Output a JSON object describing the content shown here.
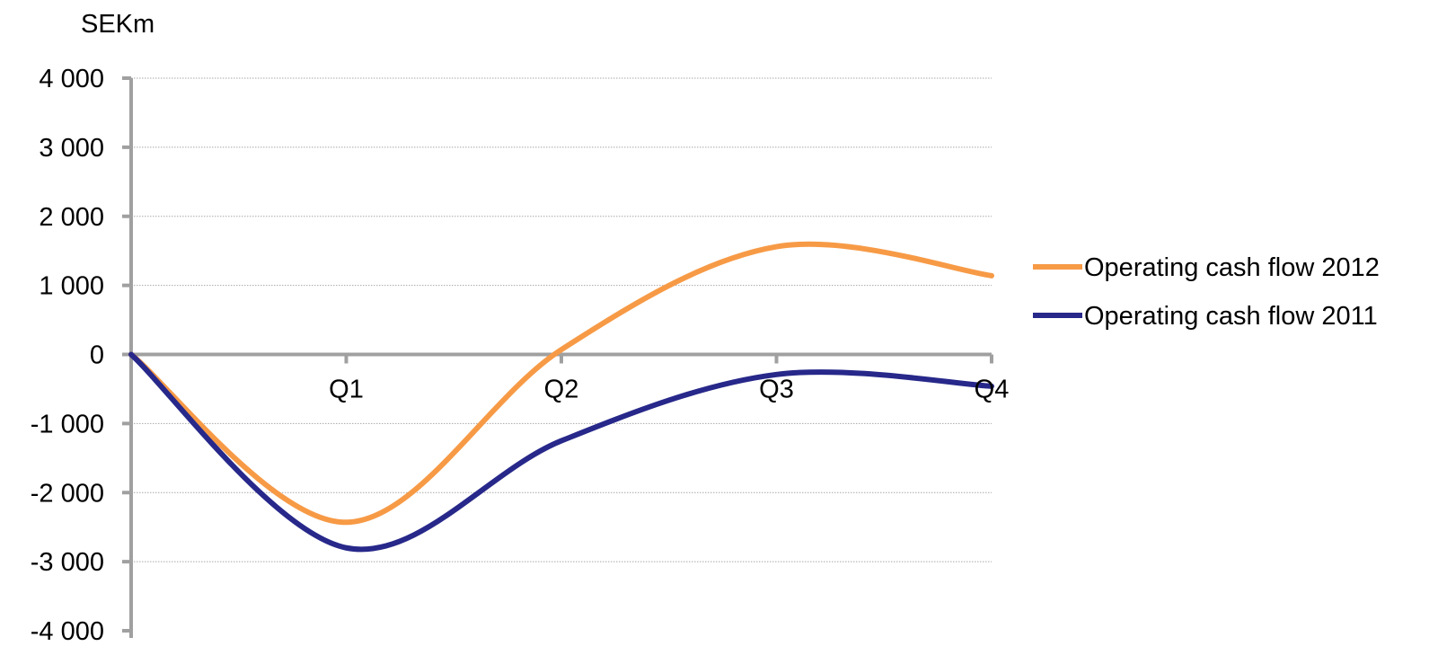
{
  "chart_data": {
    "type": "line",
    "title": "",
    "ylabel": "SEKm",
    "xlabel": "",
    "categories": [
      "",
      "Q1",
      "Q2",
      "Q3",
      "Q4"
    ],
    "x": [
      0,
      1,
      2,
      3,
      4
    ],
    "ylim": [
      -4000,
      4000
    ],
    "yticks": [
      4000,
      3000,
      2000,
      1000,
      0,
      -1000,
      -2000,
      -3000,
      -4000
    ],
    "ytick_labels": [
      "4 000",
      "3 000",
      "2 000",
      "1 000",
      "0",
      "-1 000",
      "-2 000",
      "-3 000",
      "-4 000"
    ],
    "grid": true,
    "smooth": true,
    "legend_position": "right",
    "series": [
      {
        "name": "Operating cash flow 2012",
        "color": "#f79a46",
        "values": [
          0,
          -2430,
          70,
          1560,
          1140
        ]
      },
      {
        "name": "Operating cash flow 2011",
        "color": "#27288a",
        "values": [
          0,
          -2800,
          -1250,
          -290,
          -460
        ]
      }
    ]
  }
}
